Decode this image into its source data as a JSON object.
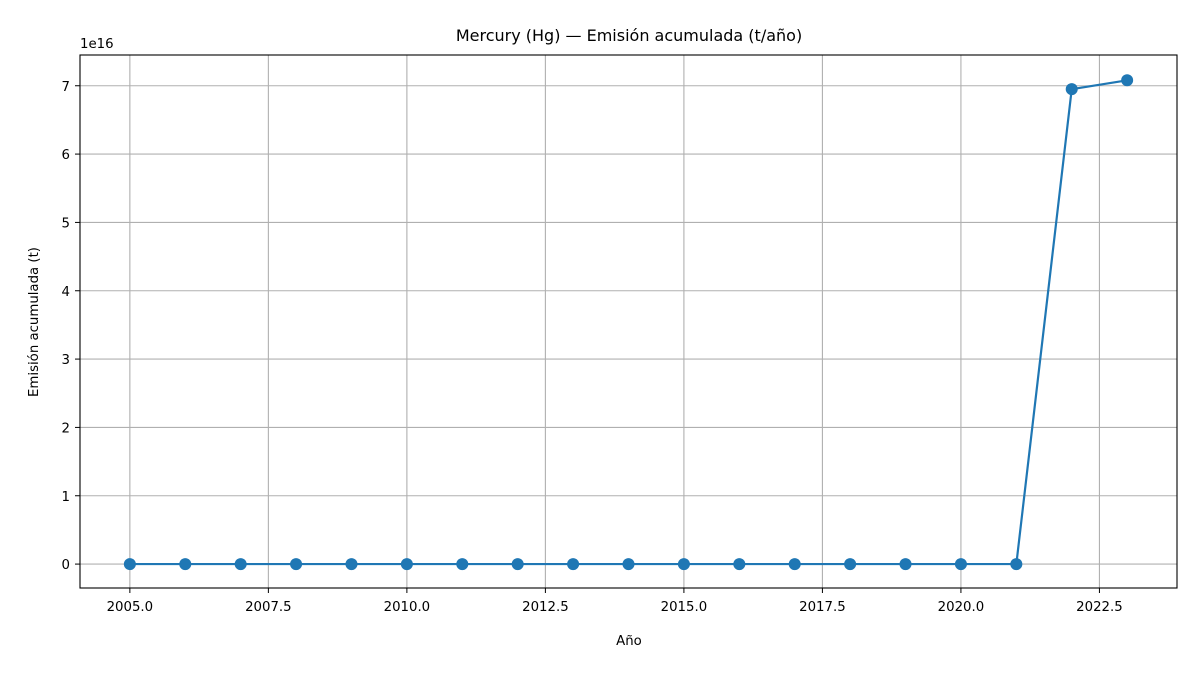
{
  "chart_data": {
    "type": "line",
    "title": "Mercury (Hg) — Emisión acumulada (t/año)",
    "xlabel": "Año",
    "ylabel": "Emisión acumulada (t)",
    "y_offset_label": "1e16",
    "y_scale_factor": 1e+16,
    "grid": true,
    "xlim": [
      2004.1,
      2023.9
    ],
    "ylim": [
      -0.35,
      7.45
    ],
    "x_ticks": [
      2005.0,
      2007.5,
      2010.0,
      2012.5,
      2015.0,
      2017.5,
      2020.0,
      2022.5
    ],
    "x_tick_labels": [
      "2005.0",
      "2007.5",
      "2010.0",
      "2012.5",
      "2015.0",
      "2017.5",
      "2020.0",
      "2022.5"
    ],
    "y_ticks": [
      0,
      1,
      2,
      3,
      4,
      5,
      6,
      7
    ],
    "y_tick_labels": [
      "0",
      "1",
      "2",
      "3",
      "4",
      "5",
      "6",
      "7"
    ],
    "series": [
      {
        "color": "#1f77b4",
        "x": [
          2005,
          2006,
          2007,
          2008,
          2009,
          2010,
          2011,
          2012,
          2013,
          2014,
          2015,
          2016,
          2017,
          2018,
          2019,
          2020,
          2021,
          2022,
          2023
        ],
        "y": [
          0,
          0,
          0,
          0,
          0,
          0,
          0,
          0,
          0,
          0,
          0,
          0,
          0,
          0,
          0,
          0,
          0,
          6.95,
          7.08
        ]
      }
    ]
  }
}
